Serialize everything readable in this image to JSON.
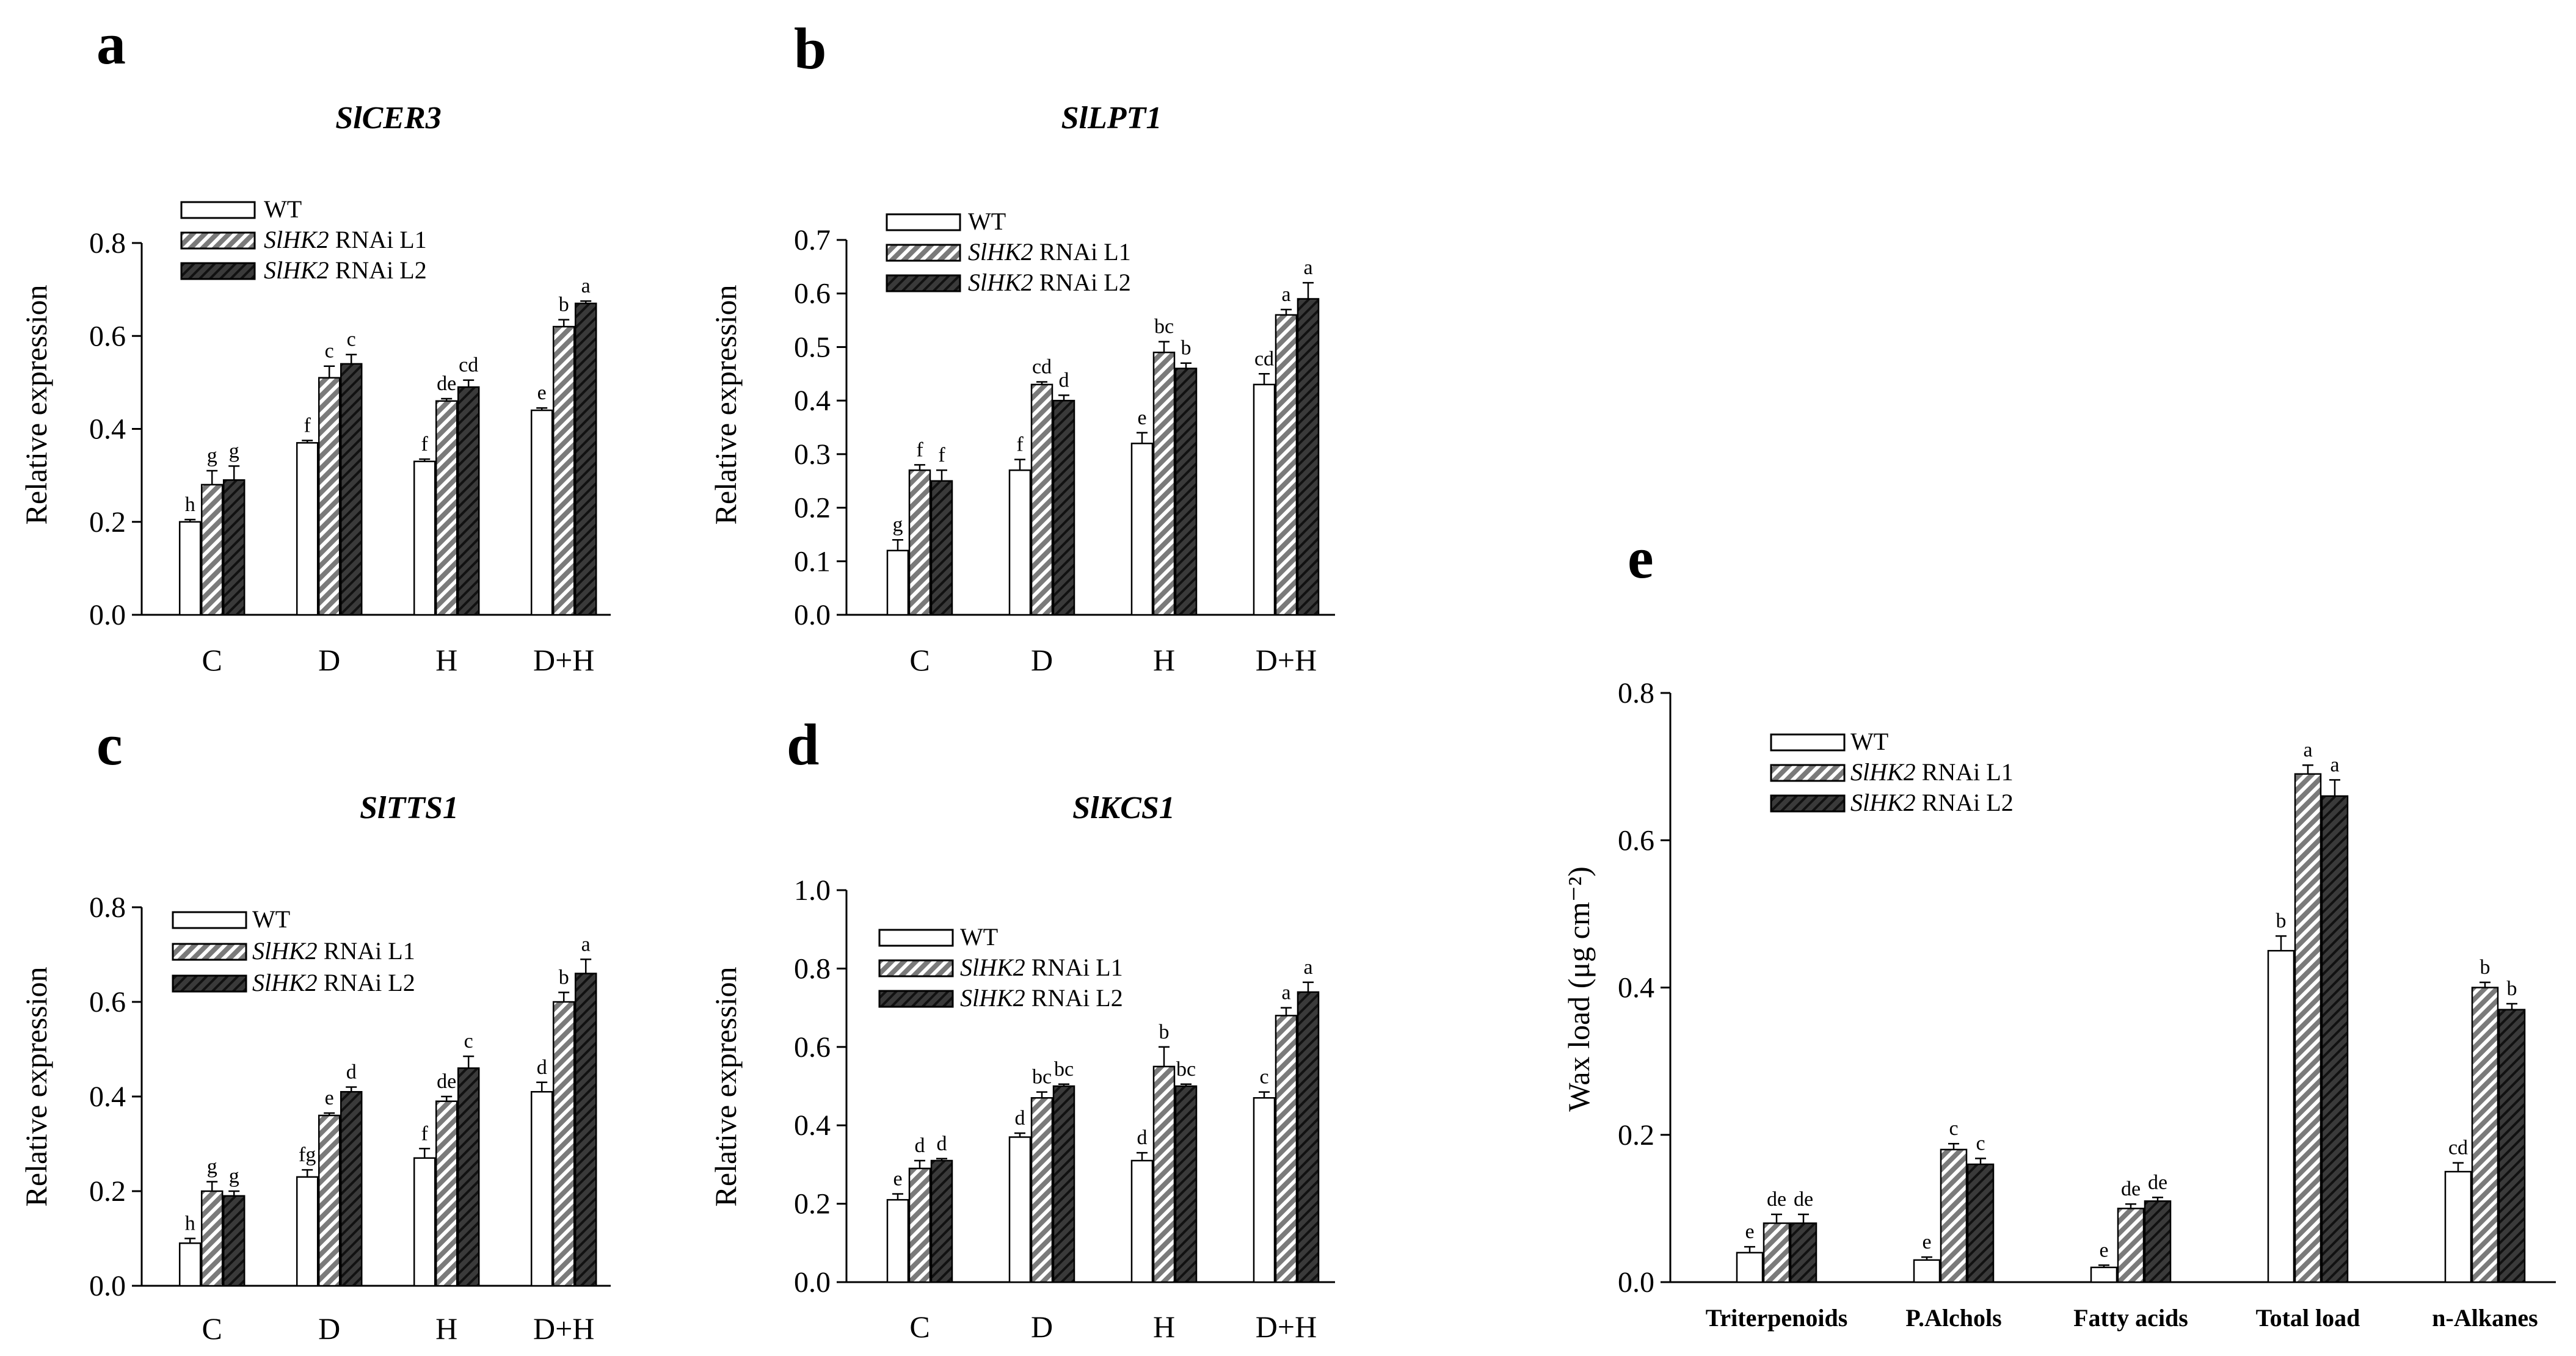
{
  "colors": {
    "wt": "#ffffff",
    "l1_stripe": "#7a7a7a",
    "l2": "#1f1f1f",
    "axis": "#000000"
  },
  "legend": {
    "wt": "WT",
    "l1_gene": "SlHK2",
    "l1_suffix": " RNAi L1",
    "l2_gene": "SlHK2",
    "l2_suffix": " RNAi L2"
  },
  "chart_data": [
    {
      "panel": "a",
      "type": "bar",
      "title": "SlCER3",
      "xlabel": "",
      "ylabel": "Relative expression",
      "ylim": [
        0,
        0.8
      ],
      "yticks": [
        "0.0",
        "0.2",
        "0.4",
        "0.6",
        "0.8"
      ],
      "legend_position": "top-left",
      "categories": [
        "C",
        "D",
        "H",
        "D+H"
      ],
      "series": [
        {
          "name": "WT",
          "values": [
            0.2,
            0.37,
            0.33,
            0.44
          ],
          "errors": [
            0.005,
            0.005,
            0.005,
            0.005
          ],
          "labels": [
            "h",
            "f",
            "f",
            "e"
          ]
        },
        {
          "name": "SlHK2 RNAi L1",
          "values": [
            0.28,
            0.51,
            0.46,
            0.62
          ],
          "errors": [
            0.03,
            0.025,
            0.005,
            0.015
          ],
          "labels": [
            "g",
            "c",
            "de",
            "b"
          ]
        },
        {
          "name": "SlHK2 RNAi L2",
          "values": [
            0.29,
            0.54,
            0.49,
            0.67
          ],
          "errors": [
            0.03,
            0.02,
            0.015,
            0.005
          ],
          "labels": [
            "g",
            "c",
            "cd",
            "a"
          ]
        }
      ]
    },
    {
      "panel": "b",
      "type": "bar",
      "title": "SlLPT1",
      "xlabel": "",
      "ylabel": "Relative expression",
      "ylim": [
        0,
        0.7
      ],
      "yticks": [
        "0.0",
        "0.1",
        "0.2",
        "0.3",
        "0.4",
        "0.5",
        "0.6",
        "0.7"
      ],
      "legend_position": "top-left",
      "categories": [
        "C",
        "D",
        "H",
        "D+H"
      ],
      "series": [
        {
          "name": "WT",
          "values": [
            0.12,
            0.27,
            0.32,
            0.43
          ],
          "errors": [
            0.02,
            0.02,
            0.02,
            0.02
          ],
          "labels": [
            "g",
            "f",
            "e",
            "cd"
          ]
        },
        {
          "name": "SlHK2 RNAi L1",
          "values": [
            0.27,
            0.43,
            0.49,
            0.56
          ],
          "errors": [
            0.01,
            0.005,
            0.02,
            0.01
          ],
          "labels": [
            "f",
            "cd",
            "bc",
            "a"
          ]
        },
        {
          "name": "SlHK2 RNAi L2",
          "values": [
            0.25,
            0.4,
            0.46,
            0.59
          ],
          "errors": [
            0.02,
            0.01,
            0.01,
            0.03
          ],
          "labels": [
            "f",
            "d",
            "b",
            "a"
          ]
        }
      ]
    },
    {
      "panel": "c",
      "type": "bar",
      "title": "SlTTS1",
      "xlabel": "",
      "ylabel": "Relative expression",
      "ylim": [
        0,
        0.8
      ],
      "yticks": [
        "0.0",
        "0.2",
        "0.4",
        "0.6",
        "0.8"
      ],
      "legend_position": "top-left",
      "categories": [
        "C",
        "D",
        "H",
        "D+H"
      ],
      "series": [
        {
          "name": "WT",
          "values": [
            0.09,
            0.23,
            0.27,
            0.41
          ],
          "errors": [
            0.01,
            0.015,
            0.02,
            0.02
          ],
          "labels": [
            "h",
            "fg",
            "f",
            "d"
          ]
        },
        {
          "name": "SlHK2 RNAi L1",
          "values": [
            0.2,
            0.36,
            0.39,
            0.6
          ],
          "errors": [
            0.02,
            0.005,
            0.01,
            0.02
          ],
          "labels": [
            "g",
            "e",
            "de",
            "b"
          ]
        },
        {
          "name": "SlHK2 RNAi L2",
          "values": [
            0.19,
            0.41,
            0.46,
            0.66
          ],
          "errors": [
            0.01,
            0.01,
            0.025,
            0.03
          ],
          "labels": [
            "g",
            "d",
            "c",
            "a"
          ]
        }
      ]
    },
    {
      "panel": "d",
      "type": "bar",
      "title": "SlKCS1",
      "xlabel": "",
      "ylabel": "Relative expression",
      "ylim": [
        0,
        1.0
      ],
      "yticks": [
        "0.0",
        "0.2",
        "0.4",
        "0.6",
        "0.8",
        "1.0"
      ],
      "legend_position": "top-left",
      "categories": [
        "C",
        "D",
        "H",
        "D+H"
      ],
      "series": [
        {
          "name": "WT",
          "values": [
            0.21,
            0.37,
            0.31,
            0.47
          ],
          "errors": [
            0.015,
            0.01,
            0.02,
            0.015
          ],
          "labels": [
            "e",
            "d",
            "d",
            "c"
          ]
        },
        {
          "name": "SlHK2 RNAi L1",
          "values": [
            0.29,
            0.47,
            0.55,
            0.68
          ],
          "errors": [
            0.02,
            0.015,
            0.05,
            0.02
          ],
          "labels": [
            "d",
            "bc",
            "b",
            "a"
          ]
        },
        {
          "name": "SlHK2 RNAi L2",
          "values": [
            0.31,
            0.5,
            0.5,
            0.74
          ],
          "errors": [
            0.005,
            0.005,
            0.005,
            0.025
          ],
          "labels": [
            "d",
            "bc",
            "bc",
            "a"
          ]
        }
      ]
    },
    {
      "panel": "e",
      "type": "bar",
      "title": "",
      "xlabel": "",
      "ylabel": "Wax load (μg cm⁻²)",
      "ylim": [
        0,
        0.8
      ],
      "yticks": [
        "0.0",
        "0.2",
        "0.4",
        "0.6",
        "0.8"
      ],
      "legend_position": "top-left",
      "categories": [
        "Triterpenoids",
        "P.Alchols",
        "Fatty acids",
        "Total load",
        "n-Alkanes"
      ],
      "series": [
        {
          "name": "WT",
          "values": [
            0.04,
            0.03,
            0.02,
            0.45,
            0.15
          ],
          "errors": [
            0.008,
            0.004,
            0.003,
            0.02,
            0.012
          ],
          "labels": [
            "e",
            "e",
            "e",
            "b",
            "cd"
          ]
        },
        {
          "name": "SlHK2 RNAi L1",
          "values": [
            0.08,
            0.18,
            0.1,
            0.69,
            0.4
          ],
          "errors": [
            0.012,
            0.008,
            0.006,
            0.012,
            0.007
          ],
          "labels": [
            "de",
            "c",
            "de",
            "a",
            "b"
          ]
        },
        {
          "name": "SlHK2 RNAi L2",
          "values": [
            0.08,
            0.16,
            0.11,
            0.66,
            0.37
          ],
          "errors": [
            0.012,
            0.008,
            0.005,
            0.022,
            0.008
          ],
          "labels": [
            "de",
            "c",
            "de",
            "a",
            "b"
          ]
        }
      ]
    }
  ]
}
